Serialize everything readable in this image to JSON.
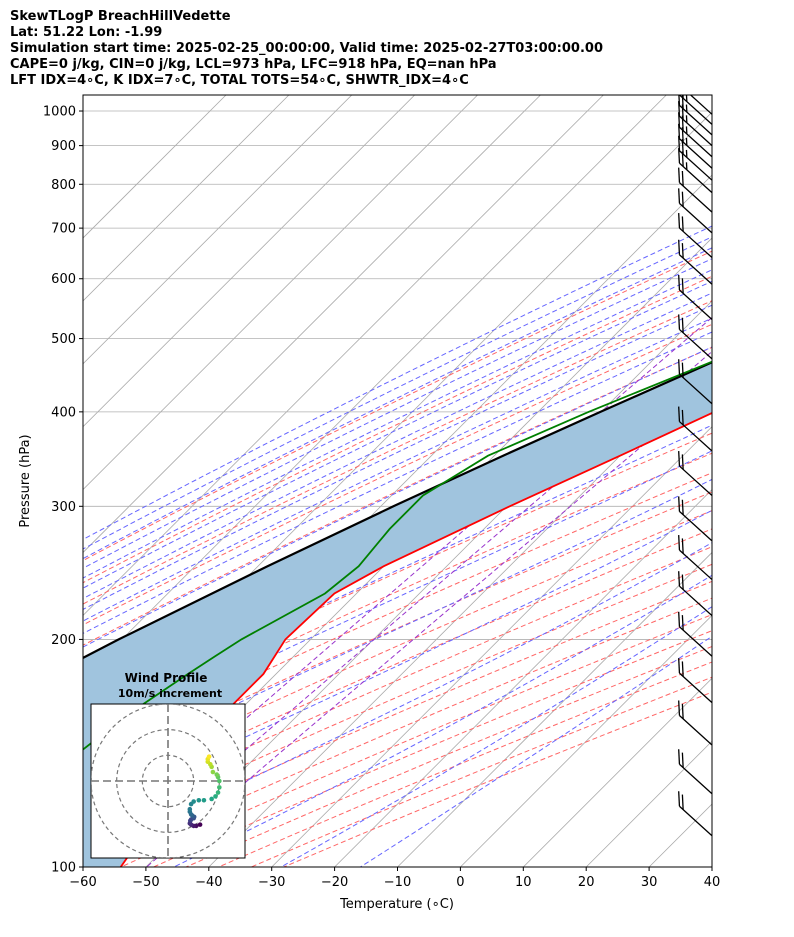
{
  "title_lines": [
    "SkewTLogP BreachHillVedette",
    "Lat: 51.22   Lon: -1.99",
    "Simulation start time: 2025-02-25_00:00:00, Valid time: 2025-02-27T03:00:00.00",
    "CAPE=0 j/kg, CIN=0 j/kg, LCL=973 hPa, LFC=918 hPa, EQ=nan hPa",
    "LFT IDX=4∘C, K IDX=7∘C, TOTAL TOTS=54∘C, SHWTR_IDX=4∘C"
  ],
  "chart_data": [
    {
      "type": "line",
      "chart_kind": "skew-t log-p",
      "xlabel": "Temperature (∘C)",
      "ylabel": "Pressure (hPa)",
      "xlim": [
        -60,
        40
      ],
      "ylim": [
        1050,
        100
      ],
      "yscale": "log",
      "x_ticks": [
        -60,
        -50,
        -40,
        -30,
        -20,
        -10,
        0,
        10,
        20,
        30,
        40
      ],
      "y_ticks": [
        1000,
        900,
        800,
        700,
        600,
        500,
        400,
        300,
        200,
        100
      ],
      "grid": true,
      "series": [
        {
          "role": "temperature",
          "color": "#ff0000",
          "points": [
            [
              1000,
              5.0
            ],
            [
              950,
              2.5
            ],
            [
              900,
              2.8
            ],
            [
              850,
              2.2
            ],
            [
              800,
              1.6
            ],
            [
              750,
              -0.2
            ],
            [
              700,
              -3.2
            ],
            [
              650,
              -6.5
            ],
            [
              600,
              -10.0
            ],
            [
              550,
              -14.5
            ],
            [
              500,
              -19.5
            ],
            [
              450,
              -25.0
            ],
            [
              400,
              -32.0
            ],
            [
              350,
              -40.0
            ],
            [
              300,
              -49.5
            ],
            [
              250,
              -60.0
            ],
            [
              230,
              -63.5
            ],
            [
              200,
              -64.0
            ],
            [
              180,
              -62.0
            ],
            [
              160,
              -62.0
            ],
            [
              140,
              -62.0
            ],
            [
              120,
              -58.0
            ],
            [
              110,
              -55.5
            ],
            [
              100,
              -54.0
            ]
          ]
        },
        {
          "role": "dewpoint",
          "color": "#008000",
          "points": [
            [
              990,
              4.0
            ],
            [
              950,
              2.5
            ],
            [
              900,
              2.0
            ],
            [
              850,
              -1.0
            ],
            [
              800,
              -6.0
            ],
            [
              750,
              -14.0
            ],
            [
              700,
              -20.0
            ],
            [
              650,
              -23.0
            ],
            [
              600,
              -26.0
            ],
            [
              550,
              -29.5
            ],
            [
              500,
              -35.0
            ],
            [
              450,
              -43.0
            ],
            [
              400,
              -52.0
            ],
            [
              350,
              -61.0
            ],
            [
              310,
              -65.0
            ],
            [
              280,
              -65.0
            ],
            [
              250,
              -64.0
            ],
            [
              230,
              -65.0
            ],
            [
              200,
              -71.0
            ],
            [
              190,
              -72.5
            ],
            [
              180,
              -74.0
            ],
            [
              160,
              -77.0
            ],
            [
              140,
              -79.0
            ],
            [
              120,
              -81.0
            ],
            [
              100,
              -83.0
            ]
          ]
        },
        {
          "role": "parcel",
          "color": "#000000",
          "points": [
            [
              1000,
              5.0
            ],
            [
              950,
              1.8
            ],
            [
              900,
              -1.3
            ],
            [
              850,
              -4.3
            ],
            [
              800,
              -7.6
            ],
            [
              750,
              -11.1
            ],
            [
              700,
              -15.0
            ],
            [
              650,
              -19.3
            ],
            [
              600,
              -24.0
            ],
            [
              550,
              -29.4
            ],
            [
              500,
              -35.5
            ],
            [
              450,
              -42.4
            ],
            [
              400,
              -50.1
            ],
            [
              350,
              -58.6
            ],
            [
              300,
              -68.0
            ],
            [
              250,
              -78.5
            ],
            [
              200,
              -90.5
            ],
            [
              150,
              -104.5
            ],
            [
              100,
              -120.0
            ]
          ]
        }
      ],
      "shading": {
        "between": [
          "parcel",
          "temperature"
        ],
        "color": "#a0c4de"
      },
      "reference_lines": {
        "dry_adiabats": {
          "color": "#ff6666"
        },
        "moist_adiabats": {
          "color": "#6666ff"
        },
        "mixing_ratio": {
          "color": "#9933cc"
        },
        "isotherms": {
          "color": "#aaaaaa"
        }
      },
      "wind_barbs": [
        {
          "p": 990,
          "speed_kt": 25
        },
        {
          "p": 960,
          "speed_kt": 25
        },
        {
          "p": 930,
          "speed_kt": 25
        },
        {
          "p": 900,
          "speed_kt": 25
        },
        {
          "p": 870,
          "speed_kt": 25
        },
        {
          "p": 840,
          "speed_kt": 25
        },
        {
          "p": 810,
          "speed_kt": 25
        },
        {
          "p": 780,
          "speed_kt": 25
        },
        {
          "p": 735,
          "speed_kt": 20
        },
        {
          "p": 690,
          "speed_kt": 20
        },
        {
          "p": 640,
          "speed_kt": 20
        },
        {
          "p": 590,
          "speed_kt": 20
        },
        {
          "p": 530,
          "speed_kt": 20
        },
        {
          "p": 470,
          "speed_kt": 20
        },
        {
          "p": 410,
          "speed_kt": 20
        },
        {
          "p": 355,
          "speed_kt": 20
        },
        {
          "p": 310,
          "speed_kt": 20
        },
        {
          "p": 270,
          "speed_kt": 20
        },
        {
          "p": 240,
          "speed_kt": 20
        },
        {
          "p": 215,
          "speed_kt": 20
        },
        {
          "p": 190,
          "speed_kt": 20
        },
        {
          "p": 165,
          "speed_kt": 20
        },
        {
          "p": 145,
          "speed_kt": 20
        },
        {
          "p": 125,
          "speed_kt": 20
        },
        {
          "p": 110,
          "speed_kt": 20
        }
      ]
    },
    {
      "type": "scatter",
      "chart_kind": "hodograph",
      "title_line1": "Wind Profile",
      "title_line2": "10m/s increment",
      "rings_m_s": [
        10,
        20,
        30
      ],
      "range_m_s": [
        -30,
        30
      ],
      "colormap": "viridis",
      "points_m_s": [
        [
          12.5,
          -17.0
        ],
        [
          11.0,
          -17.5
        ],
        [
          10.0,
          -17.5
        ],
        [
          9.0,
          -17.0
        ],
        [
          8.5,
          -16.5
        ],
        [
          8.7,
          -15.5
        ],
        [
          9.0,
          -15.0
        ],
        [
          10.0,
          -14.5
        ],
        [
          10.2,
          -14.0
        ],
        [
          9.5,
          -13.5
        ],
        [
          9.0,
          -13.0
        ],
        [
          8.5,
          -12.0
        ],
        [
          8.5,
          -11.0
        ],
        [
          9.0,
          -9.0
        ],
        [
          10.0,
          -8.0
        ],
        [
          12.0,
          -7.5
        ],
        [
          14.0,
          -7.5
        ],
        [
          17.0,
          -7.0
        ],
        [
          18.5,
          -6.0
        ],
        [
          19.5,
          -4.5
        ],
        [
          20.0,
          -2.5
        ],
        [
          20.0,
          0.0
        ],
        [
          19.5,
          1.5
        ],
        [
          19.0,
          2.5
        ],
        [
          17.5,
          3.5
        ],
        [
          17.0,
          5.5
        ],
        [
          16.5,
          6.5
        ],
        [
          15.5,
          7.5
        ],
        [
          15.5,
          8.5
        ],
        [
          16.0,
          9.5
        ]
      ]
    }
  ]
}
